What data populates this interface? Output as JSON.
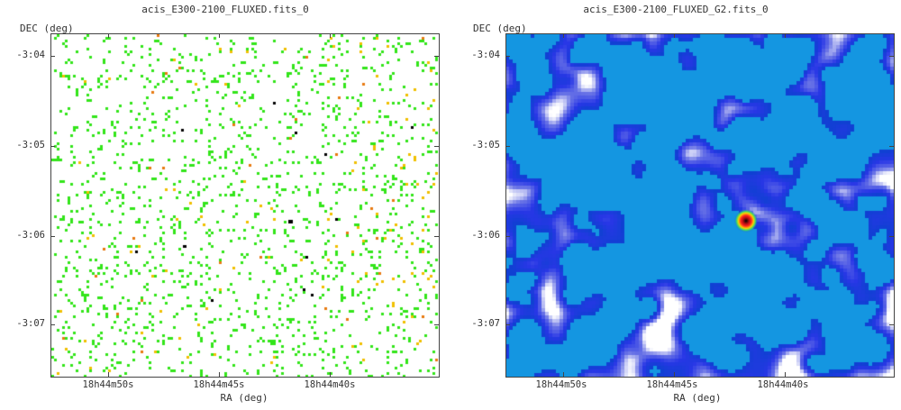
{
  "panels": [
    {
      "title": "acis_E300-2100_FLUXED.fits_0",
      "y_axis_label": "DEC (deg)",
      "x_axis_label": "RA (deg)",
      "y_ticks": [
        "-3:04",
        "-3:05",
        "-3:06",
        "-3:07"
      ],
      "x_ticks": [
        "18h44m50s",
        "18h44m45s",
        "18h44m40s"
      ],
      "image_style": "sparse-pixel-map",
      "colors": {
        "dominant": "#33e51a",
        "secondary": [
          "#f0c000",
          "#e87a10",
          "#000000"
        ]
      }
    },
    {
      "title": "acis_E300-2100_FLUXED_G2.fits_0",
      "y_axis_label": "DEC (deg)",
      "x_axis_label": "RA (deg)",
      "y_ticks": [
        "-3:04",
        "-3:05",
        "-3:06",
        "-3:07"
      ],
      "x_ticks": [
        "18h44m50s",
        "18h44m45s",
        "18h44m40s"
      ],
      "image_style": "smoothed-map",
      "colors": {
        "low": "#ffffff",
        "mid": "#2a3fe0",
        "high": "#00a8e0",
        "source": "#e01010"
      }
    }
  ]
}
